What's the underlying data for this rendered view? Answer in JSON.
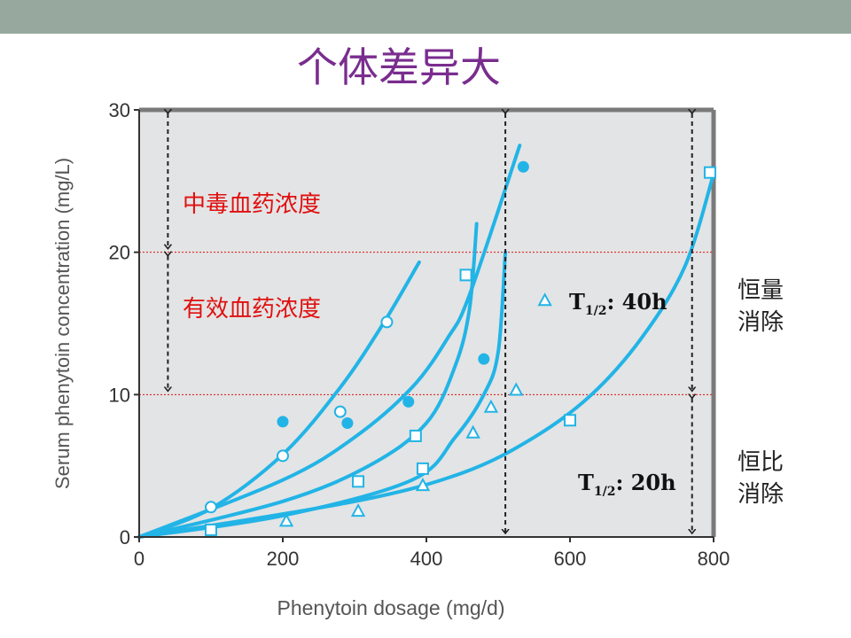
{
  "slide": {
    "title": "个体差异大",
    "header_color": "#97a89e",
    "title_color": "#7a2d8e"
  },
  "annotations": {
    "toxic_range": "中毒血药浓度",
    "effective_range": "有效血药浓度",
    "zero_order": [
      "恒量",
      "消除"
    ],
    "first_order": [
      "恒比",
      "消除"
    ],
    "t_half_40": {
      "prefix": "T",
      "sub": "1/2",
      "suffix": ": 40h"
    },
    "t_half_20": {
      "prefix": "T",
      "sub": "1/2",
      "suffix": ": 20h"
    }
  },
  "chart_data": {
    "type": "scatter",
    "xlabel": "Phenytoin dosage (mg/d)",
    "ylabel": "Serum phenytoin concentration (mg/L)",
    "xlim": [
      0,
      800
    ],
    "ylim": [
      0,
      30
    ],
    "xticks": [
      0,
      200,
      400,
      600,
      800
    ],
    "yticks": [
      0,
      10,
      20,
      30
    ],
    "plot_background": "#e3e4e5",
    "curve_color": "#22b4e6",
    "reference_lines": [
      10,
      20
    ],
    "reference_color": "#e01010",
    "curves": [
      {
        "x": [
          0,
          100,
          200,
          280,
          340,
          390
        ],
        "y": [
          0,
          2.0,
          5.8,
          10.5,
          15.0,
          19.3
        ]
      },
      {
        "x": [
          0,
          200,
          300,
          380,
          430,
          460,
          530
        ],
        "y": [
          0,
          4.0,
          7.0,
          10.5,
          14.0,
          17.0,
          27.5
        ]
      },
      {
        "x": [
          0,
          200,
          320,
          400,
          440,
          460,
          470
        ],
        "y": [
          0,
          2.5,
          5.0,
          8.0,
          12.0,
          16.0,
          22.0
        ]
      },
      {
        "x": [
          0,
          200,
          380,
          440,
          480,
          500,
          510
        ],
        "y": [
          0,
          1.5,
          4.0,
          7.0,
          10.0,
          13.0,
          20.0
        ]
      },
      {
        "x": [
          0,
          300,
          450,
          550,
          630,
          700,
          760,
          800
        ],
        "y": [
          0,
          2.5,
          4.5,
          7.0,
          10.0,
          14.0,
          19.0,
          25.5
        ]
      }
    ],
    "points": [
      {
        "marker": "open-circle",
        "x": [
          100,
          200,
          280,
          345
        ],
        "y": [
          2.1,
          5.7,
          8.8,
          15.1
        ]
      },
      {
        "marker": "filled-circle",
        "x": [
          200,
          290,
          375,
          480,
          535
        ],
        "y": [
          8.1,
          8.0,
          9.5,
          12.5,
          26.0
        ]
      },
      {
        "marker": "open-square",
        "x": [
          100,
          305,
          385,
          395,
          455,
          600,
          795
        ],
        "y": [
          0.5,
          3.9,
          7.1,
          4.8,
          18.4,
          8.2,
          25.6
        ]
      },
      {
        "marker": "open-triangle",
        "x": [
          205,
          305,
          395,
          465,
          490,
          525,
          565
        ],
        "y": [
          1.1,
          1.8,
          3.6,
          7.3,
          9.1,
          10.3,
          16.6
        ]
      }
    ],
    "arrows": [
      {
        "x": 40,
        "from": 30,
        "to": 20
      },
      {
        "x": 40,
        "from": 20,
        "to": 10
      },
      {
        "x": 510,
        "from": 30,
        "to": 0
      },
      {
        "x": 770,
        "from": 30,
        "to": 10
      },
      {
        "x": 770,
        "from": 10,
        "to": 0
      }
    ]
  }
}
